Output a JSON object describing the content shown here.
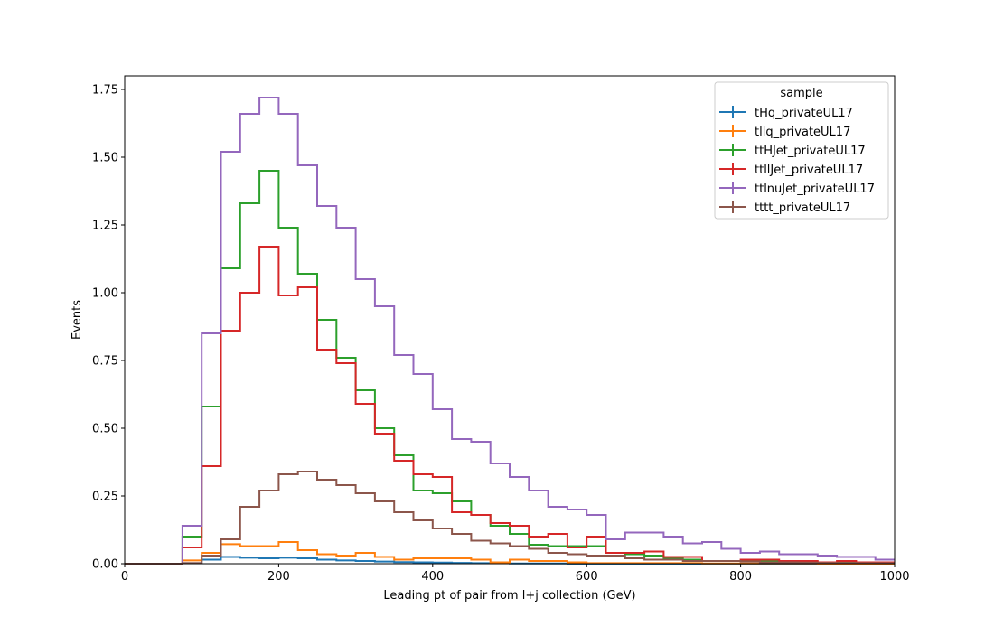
{
  "chart_data": {
    "type": "line",
    "title": "",
    "xlabel": "Leading pt of pair from l+j collection (GeV)",
    "ylabel": "Events",
    "xlim": [
      0,
      1000
    ],
    "ylim": [
      0,
      1.8
    ],
    "xticks": [
      0,
      200,
      400,
      600,
      800,
      1000
    ],
    "yticks": [
      0.0,
      0.25,
      0.5,
      0.75,
      1.0,
      1.25,
      1.5,
      1.75
    ],
    "ytick_labels": [
      "0.00",
      "0.25",
      "0.50",
      "0.75",
      "1.00",
      "1.25",
      "1.50",
      "1.75"
    ],
    "xtick_labels": [
      "0",
      "200",
      "400",
      "600",
      "800",
      "1000"
    ],
    "bin_edges_step": 25,
    "grid": false,
    "legend": {
      "title": "sample",
      "placement": "top-right"
    },
    "series": [
      {
        "name": "tHq_privateUL17",
        "color": "#1f77b4",
        "values": [
          0,
          0,
          0,
          0.002,
          0.015,
          0.025,
          0.022,
          0.02,
          0.022,
          0.02,
          0.015,
          0.012,
          0.01,
          0.008,
          0.006,
          0.005,
          0.004,
          0.003,
          0.002,
          0.002,
          0.001,
          0.001,
          0.001,
          0,
          0,
          0,
          0,
          0,
          0,
          0,
          0,
          0,
          0,
          0,
          0,
          0,
          0,
          0,
          0,
          0
        ]
      },
      {
        "name": "tllq_privateUL17",
        "color": "#ff7f0e",
        "values": [
          0,
          0,
          0,
          0.012,
          0.04,
          0.072,
          0.065,
          0.065,
          0.08,
          0.05,
          0.035,
          0.03,
          0.04,
          0.025,
          0.015,
          0.02,
          0.02,
          0.02,
          0.015,
          0.005,
          0.015,
          0.01,
          0.01,
          0.005,
          0.002,
          0.002,
          0.002,
          0.002,
          0.002,
          0.002,
          0.001,
          0.001,
          0.001,
          0.001,
          0.001,
          0.001,
          0,
          0,
          0,
          0
        ]
      },
      {
        "name": "ttHJet_privateUL17",
        "color": "#2ca02c",
        "values": [
          0,
          0,
          0,
          0.1,
          0.58,
          1.09,
          1.33,
          1.45,
          1.24,
          1.07,
          0.9,
          0.76,
          0.64,
          0.5,
          0.4,
          0.27,
          0.26,
          0.23,
          0.18,
          0.14,
          0.11,
          0.07,
          0.065,
          0.065,
          0.065,
          0.04,
          0.035,
          0.03,
          0.02,
          0.015,
          0.01,
          0.01,
          0.01,
          0.01,
          0.01,
          0.005,
          0.005,
          0.005,
          0.005,
          0.005
        ]
      },
      {
        "name": "ttllJet_privateUL17",
        "color": "#d62728",
        "values": [
          0,
          0,
          0,
          0.06,
          0.36,
          0.86,
          1.0,
          1.17,
          0.99,
          1.02,
          0.79,
          0.74,
          0.59,
          0.48,
          0.38,
          0.33,
          0.32,
          0.19,
          0.18,
          0.15,
          0.14,
          0.1,
          0.11,
          0.06,
          0.1,
          0.04,
          0.04,
          0.045,
          0.025,
          0.025,
          0.01,
          0.01,
          0.015,
          0.015,
          0.01,
          0.01,
          0.005,
          0.01,
          0.005,
          0.005
        ]
      },
      {
        "name": "ttlnuJet_privateUL17",
        "color": "#9467bd",
        "values": [
          0,
          0,
          0,
          0.14,
          0.85,
          1.52,
          1.66,
          1.72,
          1.66,
          1.47,
          1.32,
          1.24,
          1.05,
          0.95,
          0.77,
          0.7,
          0.57,
          0.46,
          0.45,
          0.37,
          0.32,
          0.27,
          0.21,
          0.2,
          0.18,
          0.09,
          0.115,
          0.115,
          0.1,
          0.075,
          0.08,
          0.055,
          0.04,
          0.045,
          0.035,
          0.035,
          0.03,
          0.025,
          0.025,
          0.015
        ]
      },
      {
        "name": "tttt_privateUL17",
        "color": "#8c564b",
        "values": [
          0,
          0,
          0,
          0.002,
          0.03,
          0.09,
          0.21,
          0.27,
          0.33,
          0.34,
          0.31,
          0.29,
          0.26,
          0.23,
          0.19,
          0.16,
          0.13,
          0.11,
          0.085,
          0.075,
          0.065,
          0.055,
          0.04,
          0.035,
          0.03,
          0.03,
          0.02,
          0.015,
          0.015,
          0.01,
          0.01,
          0.01,
          0.008,
          0.005,
          0.005,
          0.004,
          0.003,
          0.003,
          0.002,
          0.002
        ]
      }
    ]
  }
}
